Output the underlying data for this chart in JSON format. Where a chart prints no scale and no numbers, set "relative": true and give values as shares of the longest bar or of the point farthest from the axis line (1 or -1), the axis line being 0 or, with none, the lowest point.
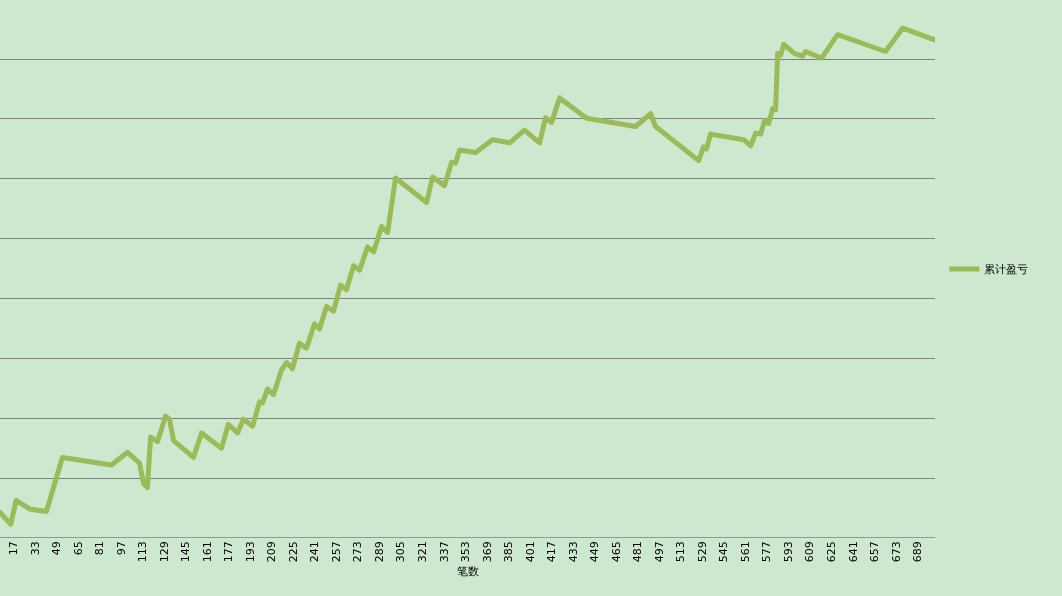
{
  "chart_data": {
    "type": "line",
    "relative": true,
    "xlabel": "笔数",
    "grid": "y",
    "legend": "right",
    "marker": "none",
    "line_style": "solid",
    "xlim": [
      7,
      702
    ],
    "xticks": [
      17,
      33,
      49,
      65,
      81,
      97,
      113,
      129,
      145,
      161,
      177,
      193,
      209,
      225,
      241,
      257,
      273,
      289,
      305,
      321,
      337,
      353,
      369,
      385,
      401,
      417,
      433,
      449,
      465,
      481,
      497,
      513,
      529,
      545,
      561,
      577,
      593,
      609,
      625,
      641,
      657,
      673,
      689
    ],
    "series": [
      {
        "name": "累计盈亏",
        "color": "#9bbb59",
        "x": [
          7,
          15,
          19,
          29,
          41.5,
          53.4,
          89.9,
          101.8,
          110.7,
          113.7,
          116.6,
          118.9,
          124.1,
          130.1,
          133,
          136,
          150.8,
          156.8,
          171.6,
          176.8,
          183.5,
          188,
          194.7,
          199.9,
          202.1,
          205.8,
          210.3,
          216.3,
          220,
          224.4,
          229.6,
          234.8,
          240.8,
          244.5,
          249.7,
          254.9,
          260.1,
          264.6,
          269.8,
          274.3,
          280.2,
          284.7,
          290.6,
          295.1,
          301,
          324.1,
          328.5,
          337.4,
          342.7,
          345.6,
          348.6,
          360.5,
          373.1,
          385.8,
          396.9,
          408.1,
          412.5,
          417,
          422.9,
          443,
          479.4,
          490.6,
          494.3,
          526.3,
          530,
          532.2,
          535.2,
          559.8,
          565,
          568.7,
          572.4,
          575.4,
          578.4,
          581.3,
          583.5,
          585,
          587.3,
          589.5,
          597.7,
          603.6,
          605.8,
          611.1,
          617.7,
          629.6,
          665.3,
          678,
          701.8
        ],
        "values": [
          0.05,
          0.027,
          0.074,
          0.057,
          0.052,
          0.158,
          0.143,
          0.168,
          0.147,
          0.107,
          0.099,
          0.198,
          0.189,
          0.239,
          0.233,
          0.191,
          0.158,
          0.206,
          0.176,
          0.223,
          0.206,
          0.233,
          0.219,
          0.267,
          0.265,
          0.292,
          0.281,
          0.33,
          0.344,
          0.332,
          0.382,
          0.372,
          0.42,
          0.41,
          0.454,
          0.445,
          0.496,
          0.487,
          0.534,
          0.525,
          0.571,
          0.561,
          0.611,
          0.599,
          0.706,
          0.658,
          0.708,
          0.691,
          0.737,
          0.735,
          0.761,
          0.756,
          0.781,
          0.775,
          0.8,
          0.775,
          0.824,
          0.815,
          0.863,
          0.823,
          0.807,
          0.832,
          0.807,
          0.74,
          0.767,
          0.763,
          0.792,
          0.781,
          0.769,
          0.794,
          0.792,
          0.819,
          0.813,
          0.842,
          0.84,
          0.95,
          0.947,
          0.968,
          0.95,
          0.945,
          0.954,
          0.948,
          0.941,
          0.987,
          0.954,
          1,
          0.977
        ]
      }
    ]
  }
}
